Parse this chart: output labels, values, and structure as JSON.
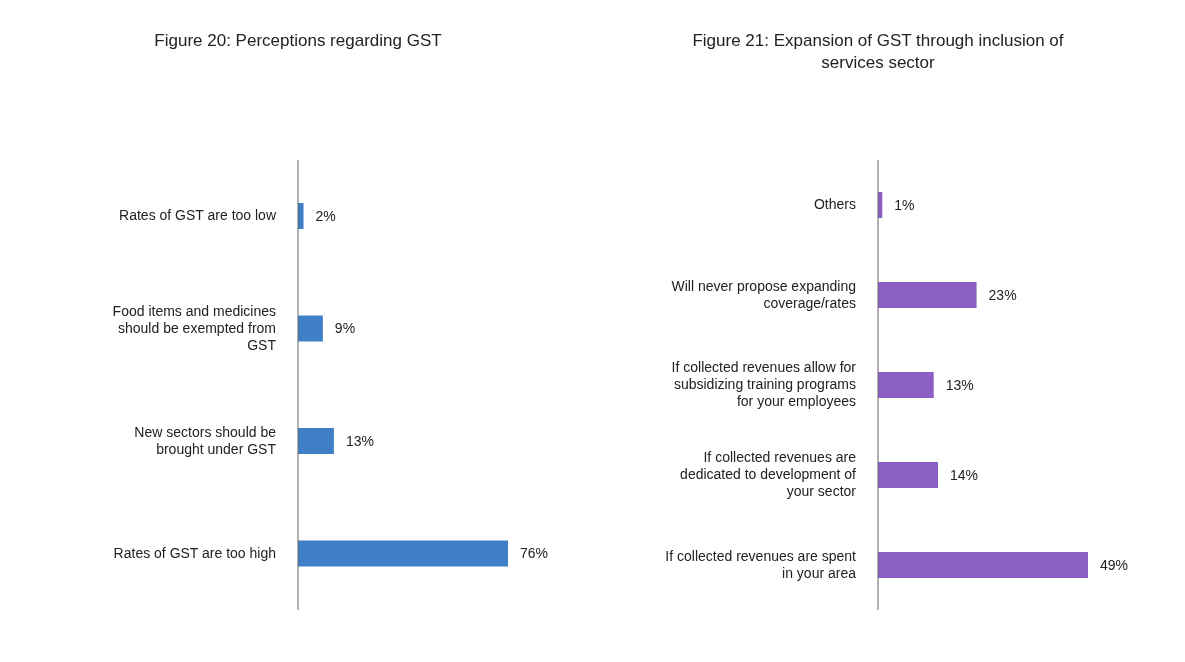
{
  "chart_data": [
    {
      "type": "bar",
      "orientation": "horizontal",
      "title": "Figure 20: Perceptions regarding GST",
      "categories": [
        "Rates of GST are too low",
        "Food items and medicines should be exempted from GST",
        "New sectors should be brought under GST",
        "Rates of GST are too high"
      ],
      "values": [
        2,
        9,
        13,
        76
      ],
      "value_labels": [
        "2%",
        "9%",
        "13%",
        "76%"
      ],
      "color": "#3f7fc8",
      "grid": false,
      "legend": false
    },
    {
      "type": "bar",
      "orientation": "horizontal",
      "title": "Figure 21: Expansion of GST through inclusion of services sector",
      "categories": [
        "Others",
        "Will never propose expanding coverage/rates",
        "If collected revenues allow for subsidizing training programs for your employees",
        "If collected revenues are dedicated to development of your sector",
        "If collected revenues are spent in your area"
      ],
      "values": [
        1,
        23,
        13,
        14,
        49
      ],
      "value_labels": [
        "1%",
        "23%",
        "13%",
        "14%",
        "49%"
      ],
      "color": "#8b5fc4",
      "grid": false,
      "legend": false
    }
  ]
}
